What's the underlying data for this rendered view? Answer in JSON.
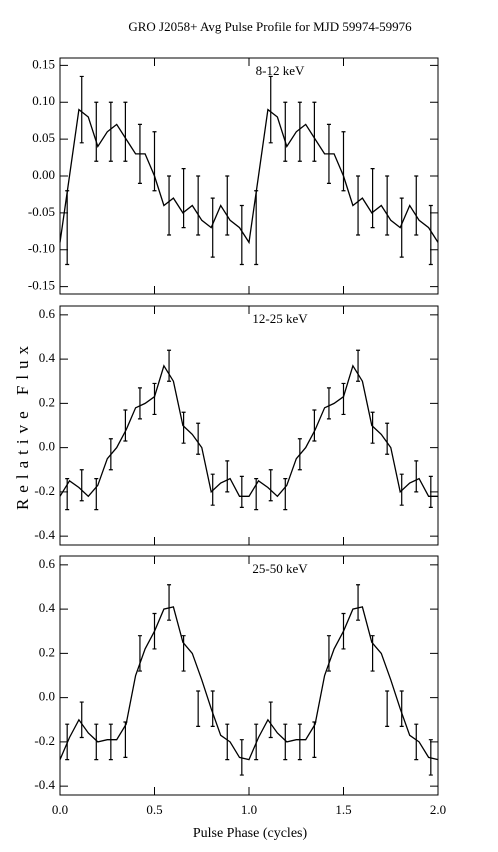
{
  "title": "GRO J2058+ Avg Pulse Profile for MJD 59974-59976",
  "x_label": "Pulse Phase (cycles)",
  "y_label": "Relative Flux",
  "xlim": [
    0,
    2
  ],
  "xticks": [
    {
      "value": 0,
      "label": "0.0"
    },
    0.5,
    {
      "value": 1,
      "label": "1.0"
    },
    1.5,
    {
      "value": 2,
      "label": "2.0"
    }
  ],
  "x": [
    0.038,
    0.115,
    0.192,
    0.269,
    0.346,
    0.423,
    0.5,
    0.577,
    0.654,
    0.731,
    0.808,
    0.885,
    0.962,
    1.038,
    1.115,
    1.192,
    1.269,
    1.346,
    1.423,
    1.5,
    1.577,
    1.654,
    1.731,
    1.808,
    1.885,
    1.962
  ],
  "fit_x": [
    0,
    0.05,
    0.1,
    0.15,
    0.2,
    0.25,
    0.3,
    0.35,
    0.4,
    0.45,
    0.5,
    0.55,
    0.6,
    0.65,
    0.7,
    0.75,
    0.8,
    0.85,
    0.9,
    0.95,
    1.0,
    1.05,
    1.1,
    1.15,
    1.2,
    1.25,
    1.3,
    1.35,
    1.4,
    1.45,
    1.5,
    1.55,
    1.6,
    1.65,
    1.7,
    1.75,
    1.8,
    1.85,
    1.9,
    1.95,
    2.0
  ],
  "chart_data": [
    {
      "type": "errorbar",
      "label": "8-12 keV",
      "color": "#000000",
      "ylim": [
        -0.16,
        0.16
      ],
      "yticks": [
        -0.15,
        {
          "value": -0.1,
          "label": "-0.10"
        },
        -0.05,
        {
          "value": 0,
          "label": "0.00"
        },
        0.05,
        {
          "value": 0.1,
          "label": "0.10"
        },
        0.15
      ],
      "values": [
        -0.07,
        0.09,
        0.06,
        0.06,
        0.06,
        0.03,
        0.02,
        -0.04,
        -0.03,
        -0.04,
        -0.07,
        -0.04,
        -0.08,
        -0.07,
        0.09,
        0.06,
        0.06,
        0.06,
        0.03,
        0.02,
        -0.04,
        -0.03,
        -0.04,
        -0.07,
        -0.04,
        -0.08
      ],
      "errors": [
        0.05,
        0.045,
        0.04,
        0.04,
        0.04,
        0.04,
        0.04,
        0.04,
        0.04,
        0.04,
        0.04,
        0.04,
        0.04,
        0.05,
        0.045,
        0.04,
        0.04,
        0.04,
        0.04,
        0.04,
        0.04,
        0.04,
        0.04,
        0.04,
        0.04,
        0.04
      ],
      "fit_values": [
        -0.09,
        0.0,
        0.09,
        0.08,
        0.04,
        0.06,
        0.07,
        0.05,
        0.03,
        0.03,
        0.0,
        -0.04,
        -0.03,
        -0.05,
        -0.04,
        -0.06,
        -0.07,
        -0.04,
        -0.06,
        -0.07,
        -0.09,
        0.0,
        0.09,
        0.08,
        0.04,
        0.06,
        0.07,
        0.05,
        0.03,
        0.03,
        0.0,
        -0.04,
        -0.03,
        -0.05,
        -0.04,
        -0.06,
        -0.07,
        -0.04,
        -0.06,
        -0.07,
        -0.09
      ]
    },
    {
      "type": "errorbar",
      "label": "12-25 keV",
      "color": "#000000",
      "ylim": [
        -0.44,
        0.64
      ],
      "yticks": [
        -0.4,
        -0.2,
        {
          "value": 0,
          "label": "0.0"
        },
        0.2,
        0.4,
        0.6
      ],
      "values": [
        -0.21,
        -0.17,
        -0.21,
        -0.03,
        0.1,
        0.2,
        0.22,
        0.37,
        0.09,
        0.04,
        -0.19,
        -0.13,
        -0.2,
        -0.21,
        -0.17,
        -0.21,
        -0.03,
        0.1,
        0.2,
        0.22,
        0.37,
        0.09,
        0.04,
        -0.19,
        -0.13,
        -0.2
      ],
      "errors": [
        0.07,
        0.07,
        0.07,
        0.07,
        0.07,
        0.07,
        0.07,
        0.07,
        0.07,
        0.07,
        0.07,
        0.07,
        0.07,
        0.07,
        0.07,
        0.07,
        0.07,
        0.07,
        0.07,
        0.07,
        0.07,
        0.07,
        0.07,
        0.07,
        0.07,
        0.07
      ],
      "fit_values": [
        -0.22,
        -0.15,
        -0.18,
        -0.22,
        -0.17,
        -0.05,
        0.0,
        0.08,
        0.18,
        0.2,
        0.23,
        0.37,
        0.3,
        0.1,
        0.06,
        0.0,
        -0.2,
        -0.16,
        -0.14,
        -0.22,
        -0.22,
        -0.15,
        -0.18,
        -0.22,
        -0.17,
        -0.05,
        0.0,
        0.08,
        0.18,
        0.2,
        0.23,
        0.37,
        0.3,
        0.1,
        0.06,
        0.0,
        -0.2,
        -0.16,
        -0.14,
        -0.22,
        -0.22
      ]
    },
    {
      "type": "errorbar",
      "label": "25-50 keV",
      "color": "#000000",
      "ylim": [
        -0.44,
        0.64
      ],
      "yticks": [
        -0.4,
        -0.2,
        {
          "value": 0,
          "label": "0.0"
        },
        0.2,
        0.4,
        0.6
      ],
      "values": [
        -0.2,
        -0.1,
        -0.2,
        -0.2,
        -0.19,
        0.2,
        0.3,
        0.43,
        0.2,
        -0.05,
        -0.05,
        -0.2,
        -0.27,
        -0.2,
        -0.1,
        -0.2,
        -0.2,
        -0.19,
        0.2,
        0.3,
        0.43,
        0.2,
        -0.05,
        -0.05,
        -0.2,
        -0.27
      ],
      "errors": [
        0.08,
        0.08,
        0.08,
        0.08,
        0.08,
        0.08,
        0.08,
        0.08,
        0.08,
        0.08,
        0.08,
        0.08,
        0.08,
        0.08,
        0.08,
        0.08,
        0.08,
        0.08,
        0.08,
        0.08,
        0.08,
        0.08,
        0.08,
        0.08,
        0.08,
        0.08
      ],
      "fit_values": [
        -0.28,
        -0.18,
        -0.1,
        -0.16,
        -0.2,
        -0.19,
        -0.19,
        -0.12,
        0.1,
        0.22,
        0.3,
        0.4,
        0.41,
        0.25,
        0.2,
        0.08,
        -0.05,
        -0.17,
        -0.2,
        -0.27,
        -0.28,
        -0.18,
        -0.1,
        -0.16,
        -0.2,
        -0.19,
        -0.19,
        -0.12,
        0.1,
        0.22,
        0.3,
        0.4,
        0.41,
        0.25,
        0.2,
        0.08,
        -0.05,
        -0.17,
        -0.2,
        -0.27,
        -0.28
      ]
    }
  ]
}
